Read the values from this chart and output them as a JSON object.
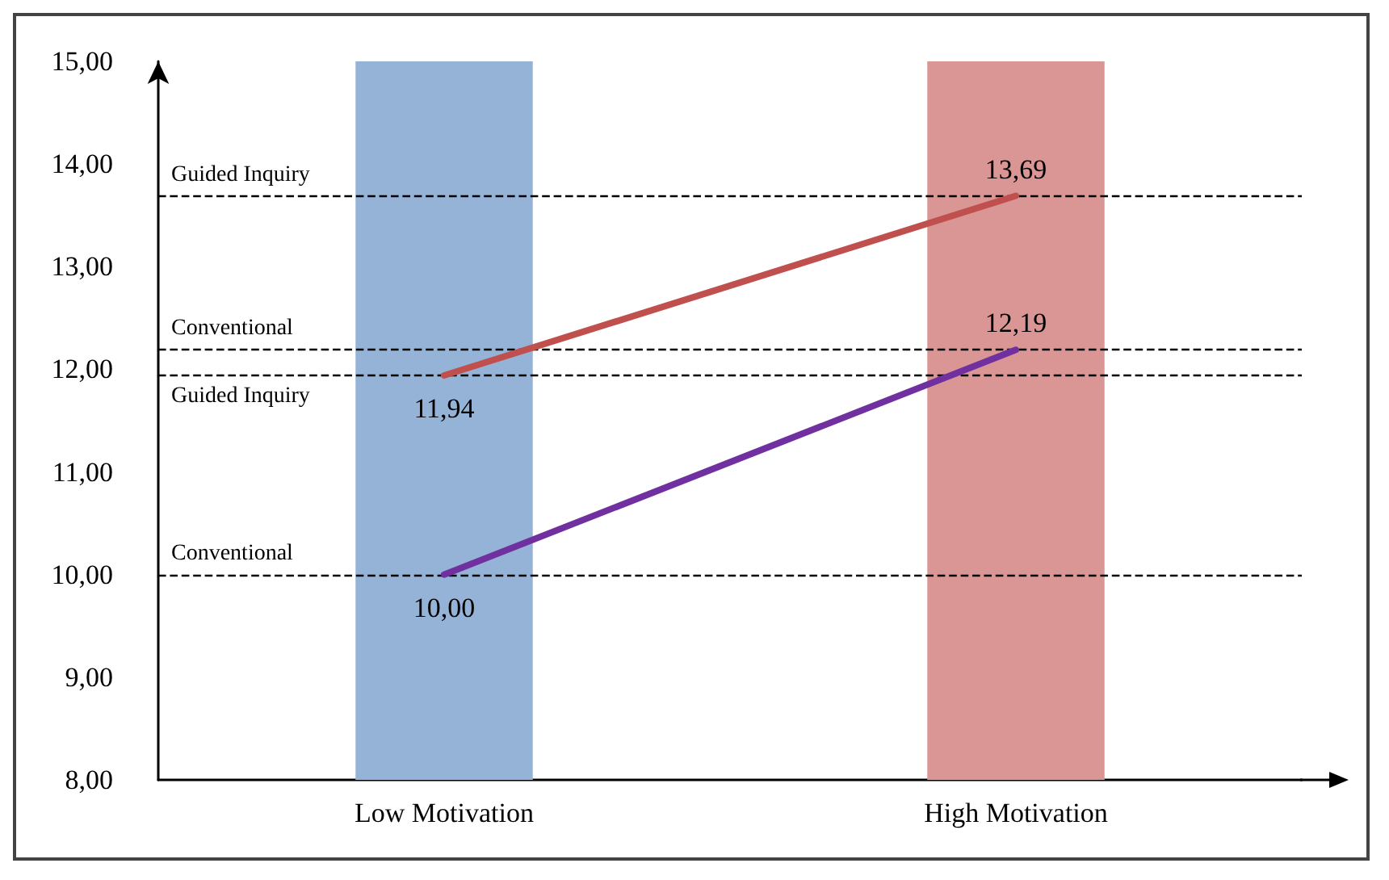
{
  "chart_data": {
    "type": "line",
    "categories": [
      "Low Motivation",
      "High Motivation"
    ],
    "series": [
      {
        "type": "bar",
        "colors": [
          "#95b3d7",
          "#d99694"
        ],
        "values": [
          15,
          15
        ]
      },
      {
        "color": "#c0504d",
        "values": [
          11.94,
          13.69
        ],
        "value_labels": [
          "11,94",
          "13,69"
        ]
      },
      {
        "color": "#7030a0",
        "values": [
          10.0,
          12.19
        ],
        "value_labels": [
          "10,00",
          "12,19"
        ]
      }
    ],
    "ylim": [
      8,
      15
    ],
    "yticks": [
      {
        "value": 8,
        "label": "8,00"
      },
      {
        "value": 9,
        "label": "9,00"
      },
      {
        "value": 10,
        "label": "10,00"
      },
      {
        "value": 11,
        "label": "11,00"
      },
      {
        "value": 12,
        "label": "12,00"
      },
      {
        "value": 13,
        "label": "13,00"
      },
      {
        "value": 14,
        "label": "14,00"
      },
      {
        "value": 15,
        "label": "15,00"
      }
    ],
    "ref_lines": [
      {
        "axis": "y",
        "value": 13.69,
        "label": "Guided Inquiry",
        "line_style": "dashed",
        "color": "#000000"
      },
      {
        "axis": "y",
        "value": 12.19,
        "label": "Conventional",
        "line_style": "dashed",
        "color": "#000000"
      },
      {
        "axis": "y",
        "value": 11.94,
        "label": "Guided Inquiry",
        "line_style": "dashed",
        "color": "#000000"
      },
      {
        "axis": "y",
        "value": 10.0,
        "label": "Conventional",
        "line_style": "dashed",
        "color": "#000000"
      }
    ],
    "grid": false,
    "marker": "none"
  }
}
